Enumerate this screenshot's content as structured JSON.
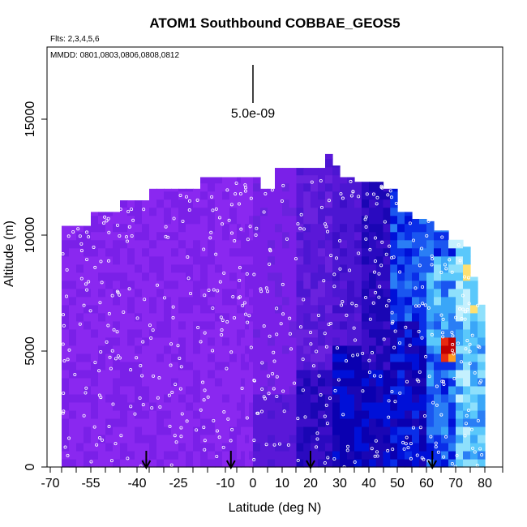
{
  "chart_data": {
    "type": "heatmap",
    "title": "ATOM1 Southbound COBBAE_GEOS5",
    "flights_label": "Flts: 2,3,4,5,6",
    "dates_label": "MMDD: 0801,0803,0806,0808,0812",
    "xlabel": "Latitude (deg N)",
    "ylabel": "Altitude (m)",
    "xlim": [
      -70,
      80
    ],
    "ylim": [
      0,
      17500
    ],
    "x_tick_labels": [
      "-70",
      "-55",
      "-40",
      "-25",
      "-10",
      "0",
      "10",
      "20",
      "30",
      "40",
      "50",
      "60",
      "70",
      "80"
    ],
    "y_ticks": [
      0,
      5000,
      10000,
      15000
    ],
    "scale_label": "5.0e-09",
    "profile_latitudes": [
      -41,
      -12,
      20,
      62
    ],
    "palette": [
      "#8a28f0",
      "#7a20e8",
      "#6a22de",
      "#5a18d8",
      "#4c16d2",
      "#3c0ec8",
      "#2a0ac0",
      "#1a06b4",
      "#0a00b0",
      "#0010d8",
      "#0a2ee8",
      "#1a56f0",
      "#2a7ef5",
      "#3aa6f8",
      "#5ac8fb",
      "#8ee0fc",
      "#c4f0fe",
      "#ffe070",
      "#ff9c20",
      "#e82a10",
      "#c00000"
    ],
    "grid": false,
    "legend": "none"
  }
}
